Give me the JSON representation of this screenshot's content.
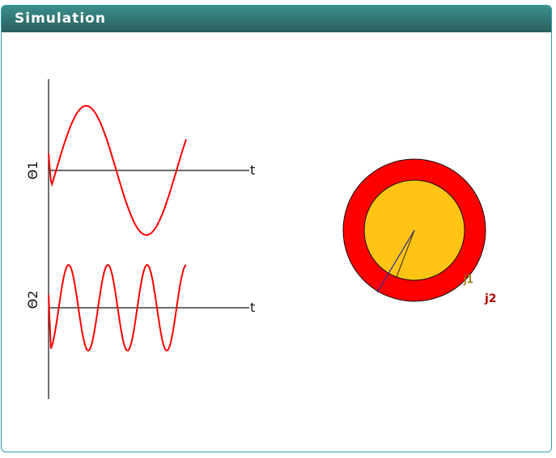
{
  "panel": {
    "title": "Simulation"
  },
  "plots": {
    "theta1": {
      "label": "Θ1",
      "axis_label": "t",
      "line_color": "#ff0000"
    },
    "theta2": {
      "label": "Θ2",
      "axis_label": "t",
      "line_color": "#ff0000"
    }
  },
  "pendulum": {
    "outer_color": "#ff0000",
    "inner_color": "#ffc414",
    "joint1_label": "j1",
    "joint2_label": "j2",
    "rod1_color": "#5a3a10",
    "rod2_color": "#2a2aa0"
  }
}
